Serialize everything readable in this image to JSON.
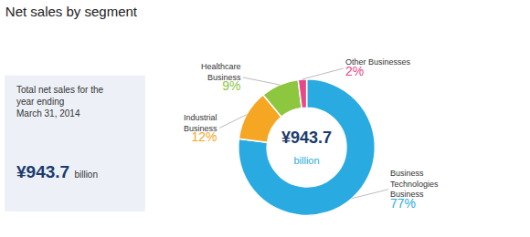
{
  "chart_data": {
    "type": "pie",
    "title": "Net sales by segment",
    "categories": [
      "Business\nTechnologies\nBusiness",
      "Industrial\nBusiness",
      "Healthcare\nBusiness",
      "Other Businesses"
    ],
    "values": [
      77,
      12,
      9,
      2
    ],
    "value_labels": [
      "77%",
      "12%",
      "9%",
      "2%"
    ],
    "data_labels": true,
    "colors": [
      "#29abe2",
      "#f5a623",
      "#8dc63f",
      "#e8478a"
    ],
    "annotations": [
      "Total net sales for the",
      "year ending",
      "March 31, 2014",
      "¥943.7",
      "billion",
      "¥943.7",
      "billion"
    ]
  }
}
